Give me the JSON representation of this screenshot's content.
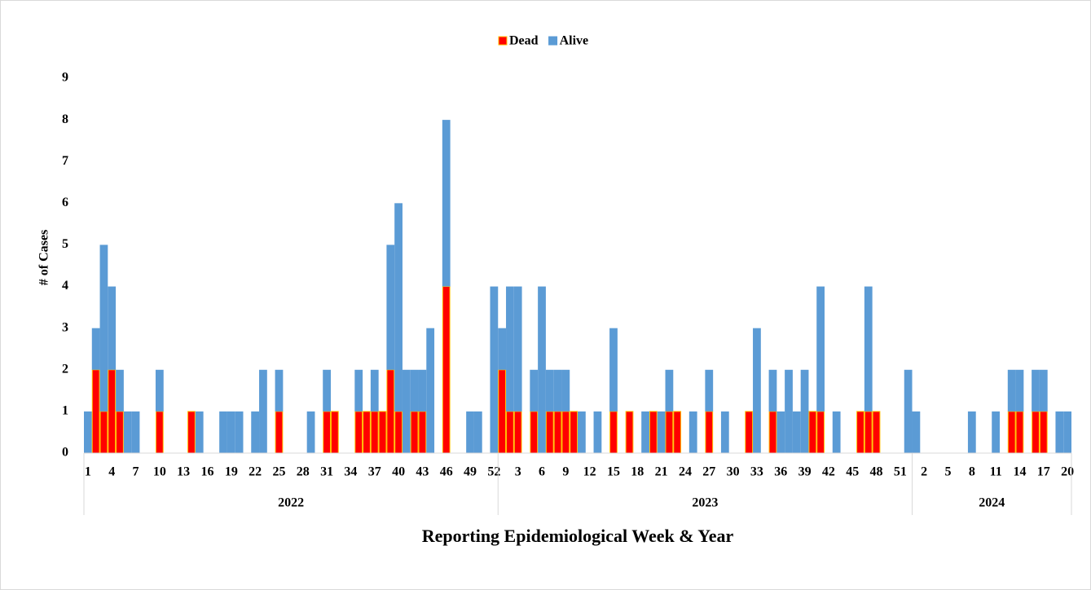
{
  "chart_data": {
    "type": "stacked_bar",
    "y_label": "# of Cases",
    "x_label": "Reporting Epidemiological Week & Year",
    "categories": [
      "1",
      null,
      null,
      "4",
      null,
      null,
      "7",
      null,
      null,
      "10",
      null,
      null,
      "13",
      null,
      null,
      "16",
      null,
      null,
      "19",
      null,
      null,
      "22",
      null,
      null,
      "25",
      null,
      null,
      "28",
      null,
      null,
      "31",
      null,
      null,
      "34",
      null,
      null,
      "37",
      null,
      null,
      "40",
      null,
      null,
      "43",
      null,
      null,
      "46",
      null,
      null,
      "49",
      null,
      null,
      "52",
      null,
      null,
      "3",
      null,
      null,
      "6",
      null,
      null,
      "9",
      null,
      null,
      "12",
      null,
      null,
      "15",
      null,
      null,
      "18",
      null,
      null,
      "21",
      null,
      null,
      "24",
      null,
      null,
      "27",
      null,
      null,
      "30",
      null,
      null,
      "33",
      null,
      null,
      "36",
      null,
      null,
      "39",
      null,
      null,
      "42",
      null,
      null,
      "45",
      null,
      null,
      "48",
      null,
      null,
      "51",
      null,
      null,
      "2",
      null,
      null,
      "5",
      null,
      null,
      "8",
      null,
      null,
      "11",
      null,
      null,
      "14",
      null,
      null,
      "17",
      null,
      null,
      "20"
    ],
    "x_groups": [
      {
        "label": "2022",
        "count": 52
      },
      {
        "label": "2023",
        "count": 52
      },
      {
        "label": "2024",
        "count": 20
      }
    ],
    "series": [
      {
        "name": "Dead",
        "color": "#ff0000",
        "edge": "#ffc000",
        "values": [
          0,
          2,
          1,
          2,
          1,
          0,
          0,
          0,
          0,
          1,
          0,
          0,
          0,
          1,
          0,
          0,
          0,
          0,
          0,
          0,
          0,
          0,
          0,
          0,
          1,
          0,
          0,
          0,
          0,
          0,
          1,
          1,
          0,
          0,
          1,
          1,
          1,
          1,
          2,
          1,
          0,
          1,
          1,
          0,
          0,
          4,
          0,
          0,
          0,
          0,
          0,
          0,
          2,
          1,
          1,
          0,
          1,
          0,
          1,
          1,
          1,
          1,
          0,
          0,
          0,
          0,
          1,
          0,
          1,
          0,
          0,
          1,
          0,
          1,
          1,
          0,
          0,
          0,
          1,
          0,
          0,
          0,
          0,
          1,
          0,
          0,
          1,
          0,
          0,
          0,
          0,
          1,
          1,
          0,
          0,
          0,
          0,
          1,
          1,
          1,
          0,
          0,
          0,
          0,
          0,
          0,
          0,
          0,
          0,
          0,
          0,
          0,
          0,
          0,
          0,
          0,
          1,
          1,
          0,
          1,
          1,
          0,
          0,
          0
        ]
      },
      {
        "name": "Alive",
        "color": "#5b9bd5",
        "values": [
          1,
          1,
          4,
          2,
          1,
          1,
          1,
          0,
          0,
          1,
          0,
          0,
          0,
          0,
          1,
          0,
          0,
          1,
          1,
          1,
          0,
          1,
          2,
          0,
          1,
          0,
          0,
          0,
          1,
          0,
          1,
          0,
          0,
          0,
          1,
          0,
          1,
          0,
          3,
          5,
          2,
          1,
          1,
          3,
          0,
          4,
          0,
          0,
          1,
          1,
          0,
          4,
          1,
          3,
          3,
          0,
          1,
          4,
          1,
          1,
          1,
          0,
          1,
          0,
          1,
          0,
          2,
          0,
          0,
          0,
          1,
          0,
          1,
          1,
          0,
          0,
          1,
          0,
          1,
          0,
          1,
          0,
          0,
          0,
          3,
          0,
          1,
          1,
          2,
          1,
          2,
          0,
          3,
          0,
          1,
          0,
          0,
          0,
          3,
          0,
          0,
          0,
          0,
          2,
          1,
          0,
          0,
          0,
          0,
          0,
          0,
          1,
          0,
          0,
          1,
          0,
          1,
          1,
          0,
          1,
          1,
          0,
          1,
          1
        ]
      }
    ],
    "ylim": [
      0,
      9
    ],
    "yticks": [
      0,
      1,
      2,
      3,
      4,
      5,
      6,
      7,
      8,
      9
    ],
    "grid": false,
    "legend": "top"
  }
}
